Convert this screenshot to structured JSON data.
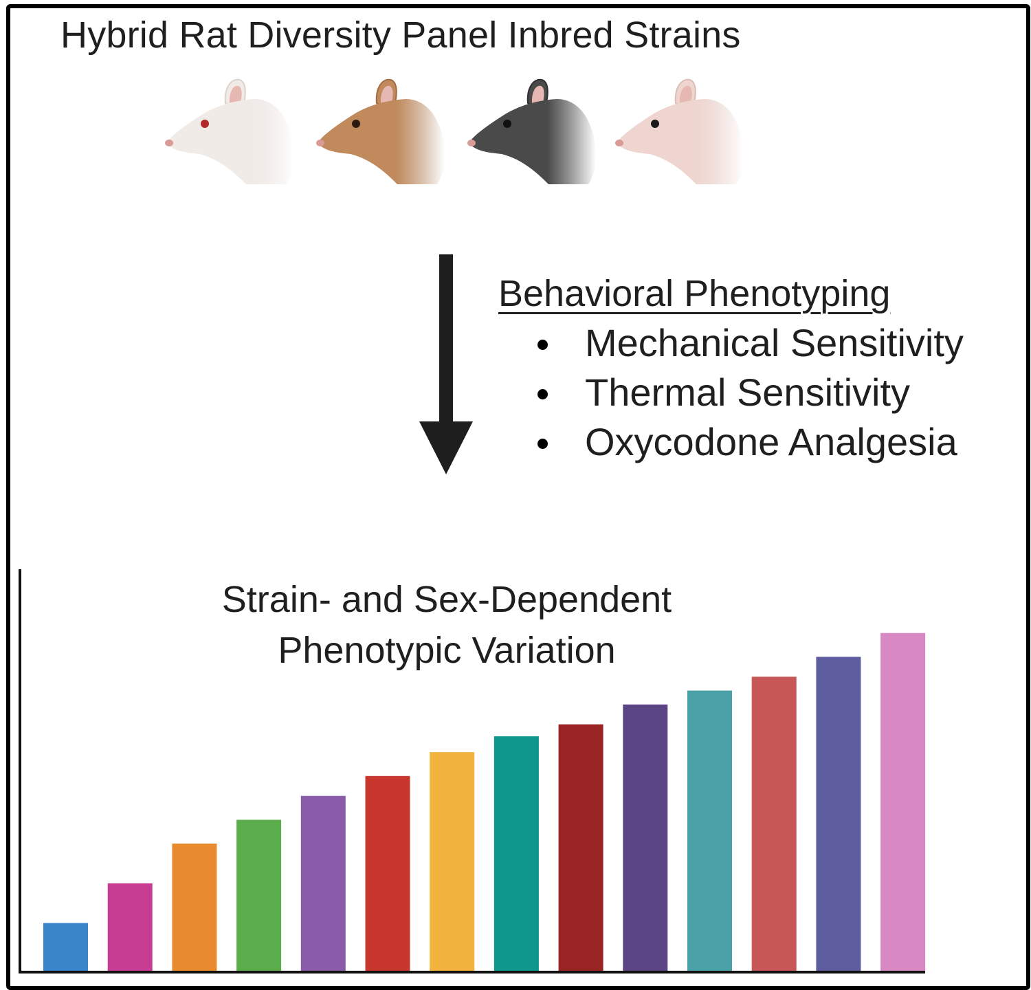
{
  "title": "Hybrid Rat Diversity Panel Inbred Strains",
  "rats": [
    {
      "name": "albino-rat",
      "fur": "#f1ebe7",
      "shade": "#dcd2cc",
      "eye": "#b0282a"
    },
    {
      "name": "brown-rat",
      "fur": "#c08a5c",
      "shade": "#a06b42",
      "eye": "#2a1a10"
    },
    {
      "name": "black-rat",
      "fur": "#4a4a4a",
      "shade": "#2f2f2f",
      "eye": "#111111"
    },
    {
      "name": "pink-rat",
      "fur": "#efd5cf",
      "shade": "#dcbdb5",
      "eye": "#1a1a1a"
    }
  ],
  "phenotyping": {
    "heading": "Behavioral Phenotyping",
    "items": [
      "Mechanical Sensitivity",
      "Thermal Sensitivity",
      "Oxycodone Analgesia"
    ]
  },
  "chart_title": {
    "line1": "Strain- and Sex-Dependent",
    "line2": "Phenotypic Variation"
  },
  "chart_data": {
    "type": "bar",
    "title": "Strain- and Sex-Dependent Phenotypic Variation",
    "xlabel": "",
    "ylabel": "",
    "ylim": [
      0,
      100
    ],
    "grid": false,
    "values": [
      12,
      22,
      32,
      38,
      44,
      49,
      55,
      59,
      62,
      67,
      70.5,
      74,
      79,
      85
    ],
    "colors": [
      "#3b86cb",
      "#c63d93",
      "#e88a2e",
      "#5aad4a",
      "#8a5ba8",
      "#c8372e",
      "#f2b33f",
      "#0f968d",
      "#982423",
      "#5b4584",
      "#4aa1a7",
      "#c65756",
      "#5c5c9e",
      "#d889c4"
    ]
  }
}
